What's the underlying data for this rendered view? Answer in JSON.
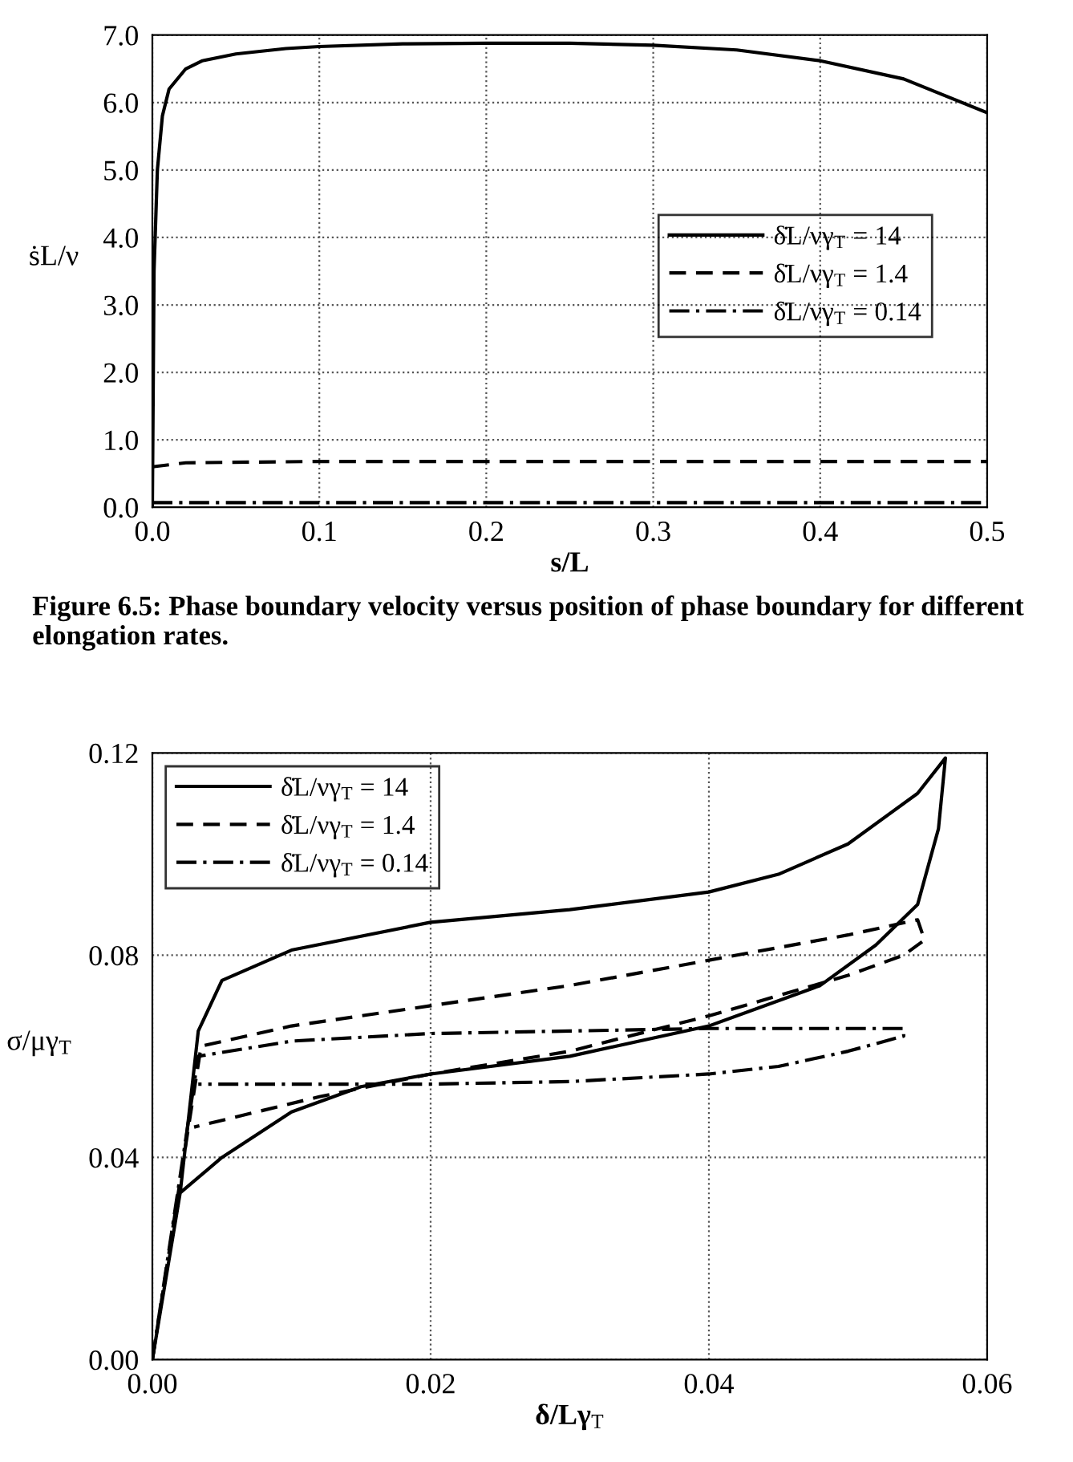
{
  "chart_data": [
    {
      "type": "line",
      "xlabel": "s/L",
      "ylabel": "ṡL/ν",
      "annotations": [
        "Figure 6.5: Phase boundary velocity versus position of phase boundary for different elongation rates."
      ],
      "xlim": [
        0,
        0.5
      ],
      "ylim": [
        0,
        7
      ],
      "xticks": [
        {
          "value": 0,
          "label": "0.0"
        },
        {
          "value": 0.1,
          "label": "0.1"
        },
        {
          "value": 0.2,
          "label": "0.2"
        },
        {
          "value": 0.3,
          "label": "0.3"
        },
        {
          "value": 0.4,
          "label": "0.4"
        },
        {
          "value": 0.5,
          "label": "0.5"
        }
      ],
      "yticks": [
        {
          "value": 0,
          "label": "0.0"
        },
        {
          "value": 1,
          "label": "1.0"
        },
        {
          "value": 2,
          "label": "2.0"
        },
        {
          "value": 3,
          "label": "3.0"
        },
        {
          "value": 4,
          "label": "4.0"
        },
        {
          "value": 5,
          "label": "5.0"
        },
        {
          "value": 6,
          "label": "6.0"
        },
        {
          "value": 7,
          "label": "7.0"
        }
      ],
      "grid": true,
      "legend": "right",
      "series": [
        {
          "name": "δ̇L/νγ$_{T}$ = 14",
          "color": "#000000",
          "line_style": "solid",
          "x": [
            0,
            0.001,
            0.003,
            0.006,
            0.01,
            0.02,
            0.03,
            0.05,
            0.08,
            0.1,
            0.15,
            0.2,
            0.25,
            0.3,
            0.35,
            0.4,
            0.45,
            0.5
          ],
          "values": [
            0.0,
            3.5,
            5.0,
            5.8,
            6.2,
            6.5,
            6.62,
            6.72,
            6.8,
            6.83,
            6.87,
            6.88,
            6.88,
            6.85,
            6.78,
            6.62,
            6.35,
            5.85
          ]
        },
        {
          "name": "δ̇L/νγ$_{T}$ = 1.4",
          "color": "#000000",
          "line_style": "dashed",
          "x": [
            0,
            0.02,
            0.1,
            0.5
          ],
          "values": [
            0.6,
            0.66,
            0.68,
            0.68
          ]
        },
        {
          "name": "δ̇L/νγ$_{T}$ = 0.14",
          "color": "#000000",
          "line_style": "dashdot",
          "x": [
            0,
            0.5
          ],
          "values": [
            0.07,
            0.07
          ]
        }
      ]
    },
    {
      "type": "line",
      "xlabel": "δ/Lγ$_{T}$",
      "ylabel": "σ/μγ$_{T}$",
      "xlim": [
        0,
        0.06
      ],
      "ylim": [
        0,
        0.12
      ],
      "xticks": [
        {
          "value": 0,
          "label": "0.00"
        },
        {
          "value": 0.02,
          "label": "0.02"
        },
        {
          "value": 0.04,
          "label": "0.04"
        },
        {
          "value": 0.06,
          "label": "0.06"
        }
      ],
      "yticks": [
        {
          "value": 0,
          "label": "0.00"
        },
        {
          "value": 0.04,
          "label": "0.04"
        },
        {
          "value": 0.08,
          "label": "0.08"
        },
        {
          "value": 0.12,
          "label": "0.12"
        }
      ],
      "grid": true,
      "legend": "top left",
      "series": [
        {
          "name": "δ̇L/νγ$_{T}$ = 14",
          "color": "#000000",
          "line_style": "solid",
          "x": [
            0,
            0.002,
            0.0033,
            0.005,
            0.01,
            0.02,
            0.03,
            0.04,
            0.045,
            0.05,
            0.055,
            0.057,
            0.0565,
            0.055,
            0.052,
            0.048,
            0.04,
            0.03,
            0.02,
            0.015,
            0.01,
            0.005,
            0.002
          ],
          "values": [
            0,
            0.033,
            0.065,
            0.075,
            0.081,
            0.0865,
            0.089,
            0.0925,
            0.096,
            0.102,
            0.112,
            0.119,
            0.105,
            0.09,
            0.082,
            0.074,
            0.066,
            0.06,
            0.0565,
            0.054,
            0.049,
            0.04,
            0.033
          ]
        },
        {
          "name": "δ̇L/νγ$_{T}$ = 1.4",
          "color": "#000000",
          "line_style": "dashed",
          "x": [
            0,
            0.0035,
            0.01,
            0.02,
            0.03,
            0.04,
            0.05,
            0.055,
            0.0555,
            0.054,
            0.05,
            0.04,
            0.03,
            0.02,
            0.012,
            0.003
          ],
          "values": [
            0,
            0.062,
            0.066,
            0.07,
            0.074,
            0.079,
            0.084,
            0.087,
            0.083,
            0.08,
            0.076,
            0.068,
            0.061,
            0.0565,
            0.052,
            0.046
          ]
        },
        {
          "name": "δ̇L/νγ$_{T}$ = 0.14",
          "color": "#000000",
          "line_style": "dashdot",
          "x": [
            0,
            0.0033,
            0.01,
            0.02,
            0.03,
            0.04,
            0.054,
            0.054,
            0.05,
            0.045,
            0.04,
            0.03,
            0.02,
            0.01,
            0.0033
          ],
          "values": [
            0,
            0.06,
            0.063,
            0.0645,
            0.065,
            0.0655,
            0.0655,
            0.064,
            0.061,
            0.058,
            0.0565,
            0.055,
            0.0545,
            0.0545,
            0.0545
          ]
        }
      ]
    }
  ]
}
